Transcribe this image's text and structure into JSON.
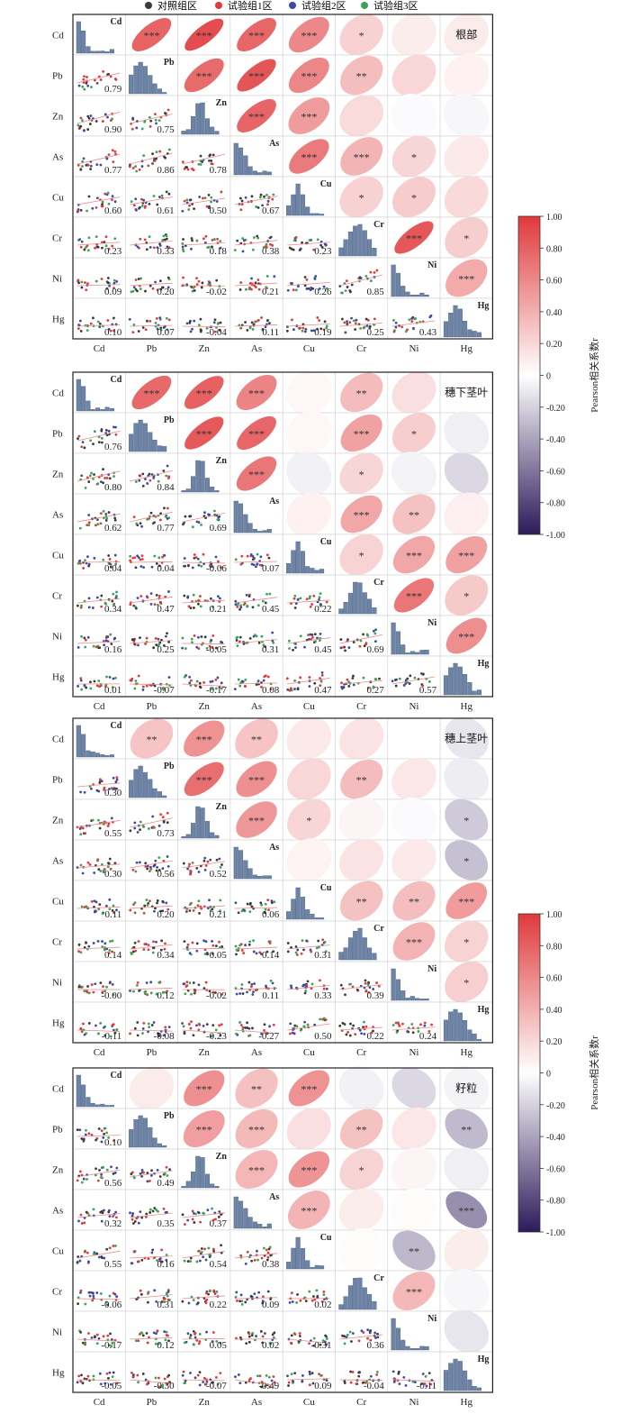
{
  "legend": {
    "items": [
      {
        "label": "对照组区",
        "color": "#3a3a3a"
      },
      {
        "label": "试验组1区",
        "color": "#e03a3a"
      },
      {
        "label": "试验组2区",
        "color": "#3b4aa3"
      },
      {
        "label": "试验组3区",
        "color": "#3aa356"
      }
    ]
  },
  "colorbar": {
    "label": "Pearson相关系数r",
    "ticks": [
      "1.00",
      "0.80",
      "0.60",
      "0.40",
      "0.20",
      "0",
      "-0.20",
      "-0.40",
      "-0.60",
      "-0.80",
      "-1.00"
    ],
    "colors": {
      "max": "#e0393b",
      "mid": "#ffffff",
      "min": "#2c1a5a"
    }
  },
  "chart_data": [
    {
      "type": "heatmap",
      "title": "根部",
      "variables": [
        "Cd",
        "Pb",
        "Zn",
        "As",
        "Cu",
        "Cr",
        "Ni",
        "Hg"
      ],
      "lower": [
        [
          null,
          null,
          null,
          null,
          null,
          null,
          null,
          null
        ],
        [
          "0.79",
          null,
          null,
          null,
          null,
          null,
          null,
          null
        ],
        [
          "0.90",
          "0.75",
          null,
          null,
          null,
          null,
          null,
          null
        ],
        [
          "0.77",
          "0.86",
          "0.78",
          null,
          null,
          null,
          null,
          null
        ],
        [
          "0.60",
          "0.61",
          "0.50",
          "0.67",
          null,
          null,
          null,
          null
        ],
        [
          "0.23",
          "0.33",
          "0.18",
          "0.38",
          "0.23",
          null,
          null,
          null
        ],
        [
          "0.09",
          "0.20",
          "-0.02",
          "0.21",
          "0.26",
          "0.85",
          null,
          null
        ],
        [
          "0.10",
          "0.07",
          "-0.04",
          "0.11",
          "0.19",
          "0.25",
          "0.43",
          null
        ]
      ],
      "sig": [
        [
          "",
          "***",
          "***",
          "***",
          "***",
          "*",
          "",
          ""
        ],
        [
          "",
          "",
          "***",
          "***",
          "***",
          "**",
          "",
          ""
        ],
        [
          "",
          "",
          "",
          "***",
          "***",
          "",
          "",
          ""
        ],
        [
          "",
          "",
          "",
          "",
          "***",
          "***",
          "*",
          ""
        ],
        [
          "",
          "",
          "",
          "",
          "",
          "*",
          "*",
          ""
        ],
        [
          "",
          "",
          "",
          "",
          "",
          "",
          "***",
          "*"
        ],
        [
          "",
          "",
          "",
          "",
          "",
          "",
          "",
          "***"
        ],
        [
          "",
          "",
          "",
          "",
          "",
          "",
          "",
          ""
        ]
      ]
    },
    {
      "type": "heatmap",
      "title": "穗下茎叶",
      "variables": [
        "Cd",
        "Pb",
        "Zn",
        "As",
        "Cu",
        "Cr",
        "Ni",
        "Hg"
      ],
      "lower": [
        [
          null,
          null,
          null,
          null,
          null,
          null,
          null,
          null
        ],
        [
          "0.76",
          null,
          null,
          null,
          null,
          null,
          null,
          null
        ],
        [
          "0.80",
          "0.84",
          null,
          null,
          null,
          null,
          null,
          null
        ],
        [
          "0.62",
          "0.77",
          "0.69",
          null,
          null,
          null,
          null,
          null
        ],
        [
          "0.04",
          "0.04",
          "-0.06",
          "0.07",
          null,
          null,
          null,
          null
        ],
        [
          "0.34",
          "0.47",
          "0.21",
          "0.45",
          "0.22",
          null,
          null,
          null
        ],
        [
          "0.16",
          "0.25",
          "-0.05",
          "0.31",
          "0.45",
          "0.69",
          null,
          null
        ],
        [
          "0.01",
          "-0.07",
          "-0.17",
          "0.08",
          "0.47",
          "0.27",
          "0.57",
          null
        ]
      ],
      "sig": [
        [
          "",
          "***",
          "***",
          "***",
          "",
          "**",
          "",
          ""
        ],
        [
          "",
          "",
          "***",
          "***",
          "",
          "***",
          "*",
          ""
        ],
        [
          "",
          "",
          "",
          "***",
          "",
          "*",
          "",
          ""
        ],
        [
          "",
          "",
          "",
          "",
          "",
          "***",
          "**",
          ""
        ],
        [
          "",
          "",
          "",
          "",
          "",
          "*",
          "***",
          "***"
        ],
        [
          "",
          "",
          "",
          "",
          "",
          "",
          "***",
          "*"
        ],
        [
          "",
          "",
          "",
          "",
          "",
          "",
          "",
          "***"
        ],
        [
          "",
          "",
          "",
          "",
          "",
          "",
          "",
          ""
        ]
      ]
    },
    {
      "type": "heatmap",
      "title": "穗上茎叶",
      "variables": [
        "Cd",
        "Pb",
        "Zn",
        "As",
        "Cu",
        "Cr",
        "Ni",
        "Hg"
      ],
      "lower": [
        [
          null,
          null,
          null,
          null,
          null,
          null,
          null,
          null
        ],
        [
          "0.30",
          null,
          null,
          null,
          null,
          null,
          null,
          null
        ],
        [
          "0.55",
          "0.73",
          null,
          null,
          null,
          null,
          null,
          null
        ],
        [
          "0.30",
          "0.56",
          "0.52",
          null,
          null,
          null,
          null,
          null
        ],
        [
          "0.11",
          "0.20",
          "0.21",
          "0.06",
          null,
          null,
          null,
          null
        ],
        [
          "0.14",
          "0.34",
          "0.05",
          "0.14",
          "0.31",
          null,
          null,
          null
        ],
        [
          "-0.00",
          "0.12",
          "-0.02",
          "0.11",
          "0.33",
          "0.39",
          null,
          null
        ],
        [
          "-0.11",
          "-0.08",
          "-0.23",
          "-0.27",
          "0.50",
          "0.22",
          "0.24",
          null
        ]
      ],
      "sig": [
        [
          "",
          "**",
          "***",
          "**",
          "",
          "",
          "",
          ""
        ],
        [
          "",
          "",
          "***",
          "***",
          "",
          "**",
          "",
          ""
        ],
        [
          "",
          "",
          "",
          "***",
          "*",
          "",
          "",
          "*"
        ],
        [
          "",
          "",
          "",
          "",
          "",
          "",
          "",
          "*"
        ],
        [
          "",
          "",
          "",
          "",
          "",
          "**",
          "**",
          "***"
        ],
        [
          "",
          "",
          "",
          "",
          "",
          "",
          "***",
          "*"
        ],
        [
          "",
          "",
          "",
          "",
          "",
          "",
          "",
          "*"
        ],
        [
          "",
          "",
          "",
          "",
          "",
          "",
          "",
          ""
        ]
      ]
    },
    {
      "type": "heatmap",
      "title": "籽粒",
      "variables": [
        "Cd",
        "Pb",
        "Zn",
        "As",
        "Cu",
        "Cr",
        "Ni",
        "Hg"
      ],
      "lower": [
        [
          null,
          null,
          null,
          null,
          null,
          null,
          null,
          null
        ],
        [
          "0.10",
          null,
          null,
          null,
          null,
          null,
          null,
          null
        ],
        [
          "0.56",
          "0.49",
          null,
          null,
          null,
          null,
          null,
          null
        ],
        [
          "0.32",
          "0.35",
          "0.37",
          null,
          null,
          null,
          null,
          null
        ],
        [
          "0.55",
          "0.16",
          "0.54",
          "0.38",
          null,
          null,
          null,
          null
        ],
        [
          "-0.06",
          "0.31",
          "0.22",
          "0.09",
          "0.02",
          null,
          null,
          null
        ],
        [
          "-0.17",
          "0.12",
          "0.05",
          "0.02",
          "-0.31",
          "0.36",
          null,
          null
        ],
        [
          "-0.05",
          "-0.30",
          "-0.07",
          "-0.49",
          "0.09",
          "-0.04",
          "-0.11",
          null
        ]
      ],
      "sig": [
        [
          "",
          "",
          "***",
          "**",
          "***",
          "",
          "",
          ""
        ],
        [
          "",
          "",
          "***",
          "***",
          "",
          "**",
          "",
          "**"
        ],
        [
          "",
          "",
          "",
          "***",
          "***",
          "*",
          "",
          ""
        ],
        [
          "",
          "",
          "",
          "",
          "***",
          "",
          "",
          "***"
        ],
        [
          "",
          "",
          "",
          "",
          "",
          "",
          "**",
          ""
        ],
        [
          "",
          "",
          "",
          "",
          "",
          "",
          "***",
          ""
        ],
        [
          "",
          "",
          "",
          "",
          "",
          "",
          "",
          ""
        ],
        [
          "",
          "",
          "",
          "",
          "",
          "",
          "",
          ""
        ]
      ]
    }
  ]
}
